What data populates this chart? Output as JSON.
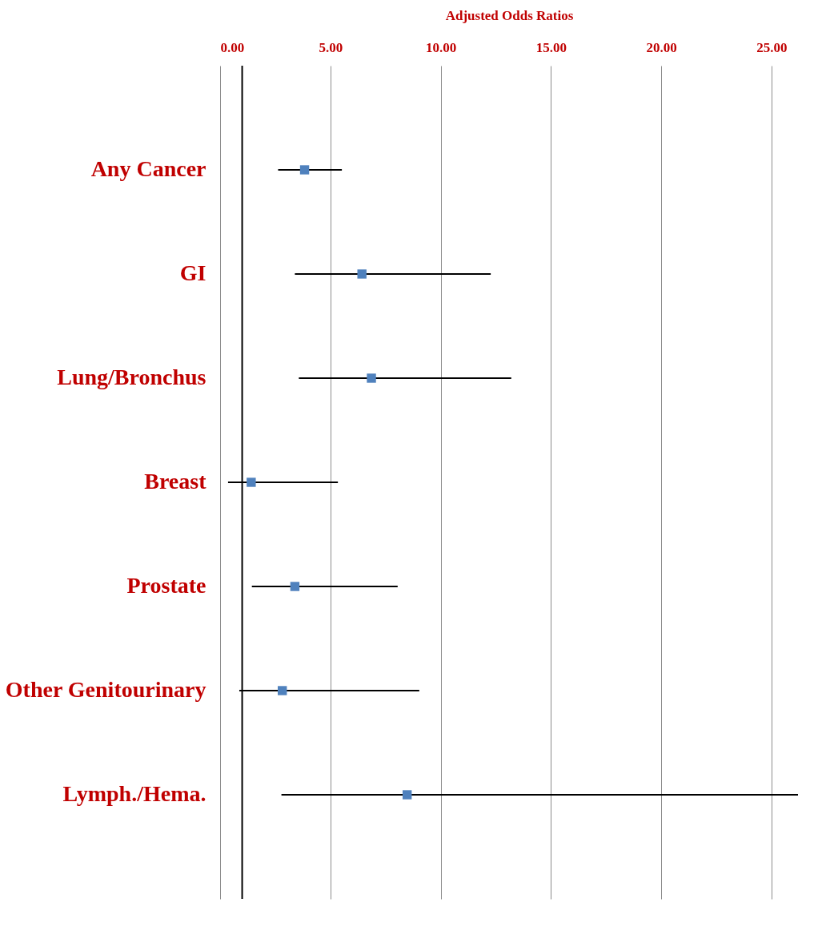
{
  "chart_data": {
    "type": "scatter",
    "orientation": "horizontal",
    "xlabel": "Adjusted Odds Ratios",
    "categories": [
      "Any Cancer",
      "GI",
      "Lung/Bronchus",
      "Breast",
      "Prostate",
      "Other Genitourinary",
      "Lymph./Hema."
    ],
    "color": "#4f81bd",
    "values": [
      3.83,
      6.43,
      6.86,
      1.41,
      3.39,
      2.82,
      8.48
    ],
    "errors": [
      [
        2.63,
        5.52
      ],
      [
        3.39,
        12.27
      ],
      [
        3.57,
        13.2
      ],
      [
        0.36,
        5.34
      ],
      [
        1.44,
        8.05
      ],
      [
        0.87,
        9.03
      ],
      [
        2.78,
        26.2
      ]
    ],
    "xlim": [
      0,
      26.2
    ],
    "xticks": [
      {
        "value": 0,
        "label": "0.00"
      },
      {
        "value": 5,
        "label": "5.00"
      },
      {
        "value": 10,
        "label": "10.00"
      },
      {
        "value": 15,
        "label": "15.00"
      },
      {
        "value": 20,
        "label": "20.00"
      },
      {
        "value": 25,
        "label": "25.00"
      }
    ],
    "ref_lines": [
      {
        "axis": "x",
        "value": 1,
        "color": "#000000"
      }
    ],
    "grid": "x",
    "marker": "square"
  }
}
